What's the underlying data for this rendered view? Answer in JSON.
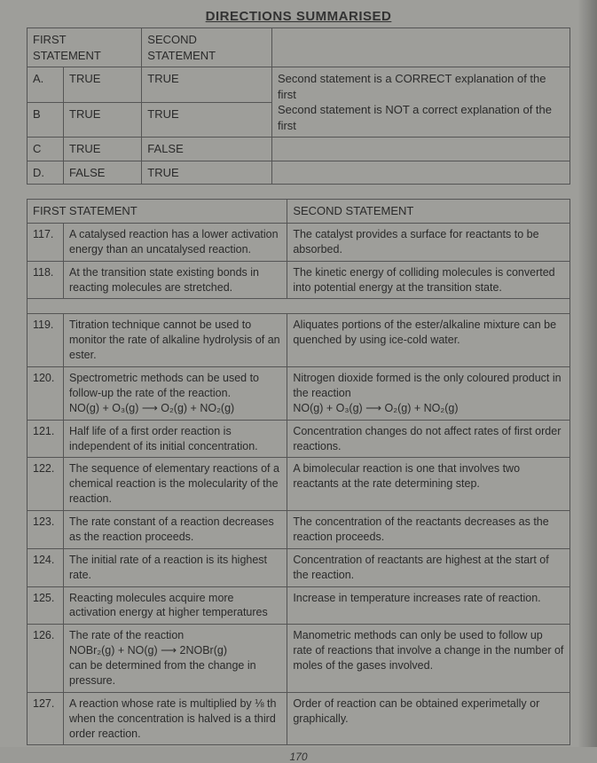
{
  "title": "DIRECTIONS SUMMARISED",
  "directions": {
    "header": {
      "first": "FIRST STATEMENT",
      "second": "SECOND STATEMENT",
      "explain": ""
    },
    "rows": [
      {
        "label": "A.",
        "first": "TRUE",
        "second": "TRUE",
        "explain": "Second statement is a CORRECT explanation of the first"
      },
      {
        "label": "B",
        "first": "TRUE",
        "second": "TRUE",
        "explain": "Second statement is NOT a correct explanation of the first"
      },
      {
        "label": "C",
        "first": "TRUE",
        "second": "FALSE",
        "explain": ""
      },
      {
        "label": "D.",
        "first": "FALSE",
        "second": "TRUE",
        "explain": ""
      }
    ]
  },
  "statements": {
    "header": {
      "first": "FIRST STATEMENT",
      "second": "SECOND STATEMENT"
    },
    "items": [
      {
        "num": "117.",
        "first": "A catalysed reaction has a lower activation energy than an uncatalysed reaction.",
        "second": "The catalyst provides a surface for reactants to be absorbed."
      },
      {
        "num": "118.",
        "first": "At the transition state existing bonds in reacting molecules are stretched.",
        "second": "The kinetic energy of colliding molecules is converted into potential energy at the transition state."
      },
      {
        "num": "119.",
        "first": "Titration technique cannot be used to monitor the rate of alkaline hydrolysis of an ester.",
        "second": "Aliquates portions of the ester/alkaline mixture can be quenched by using ice-cold water."
      },
      {
        "num": "120.",
        "first": "Spectrometric methods can be used to follow-up the rate of the reaction.\nNO(g) + O₃(g) ⟶ O₂(g) + NO₂(g)",
        "second": "Nitrogen dioxide formed is the only coloured product in the reaction\nNO(g) + O₃(g) ⟶ O₂(g) + NO₂(g)"
      },
      {
        "num": "121.",
        "first": "Half life of a first order reaction is independent of its initial concentration.",
        "second": "Concentration changes do not affect rates of first order reactions."
      },
      {
        "num": "122.",
        "first": "The sequence of elementary reactions of a chemical reaction is the molecularity of the reaction.",
        "second": "A bimolecular reaction is one that involves two reactants at the rate determining step."
      },
      {
        "num": "123.",
        "first": "The rate constant of a reaction decreases as the reaction proceeds.",
        "second": "The concentration of the reactants decreases as the reaction proceeds."
      },
      {
        "num": "124.",
        "first": "The initial rate of a reaction is its highest rate.",
        "second": "Concentration of reactants are highest at the start of the reaction."
      },
      {
        "num": "125.",
        "first": "Reacting molecules acquire more activation energy at higher temperatures",
        "second": "Increase in temperature increases rate of reaction."
      },
      {
        "num": "126.",
        "first": "The rate of the reaction\nNOBr₂(g) + NO(g) ⟶ 2NOBr(g)\ncan be determined from the change in pressure.",
        "second": "Manometric methods can only be used to follow up rate of reactions that involve a change in the number of moles of the gases involved."
      },
      {
        "num": "127.",
        "first": "A reaction whose rate is multiplied by ⅛ th when the concentration is halved is a third order reaction.",
        "second": "Order of reaction can be obtained experimetally or graphically."
      }
    ]
  },
  "pageNumber": "170"
}
